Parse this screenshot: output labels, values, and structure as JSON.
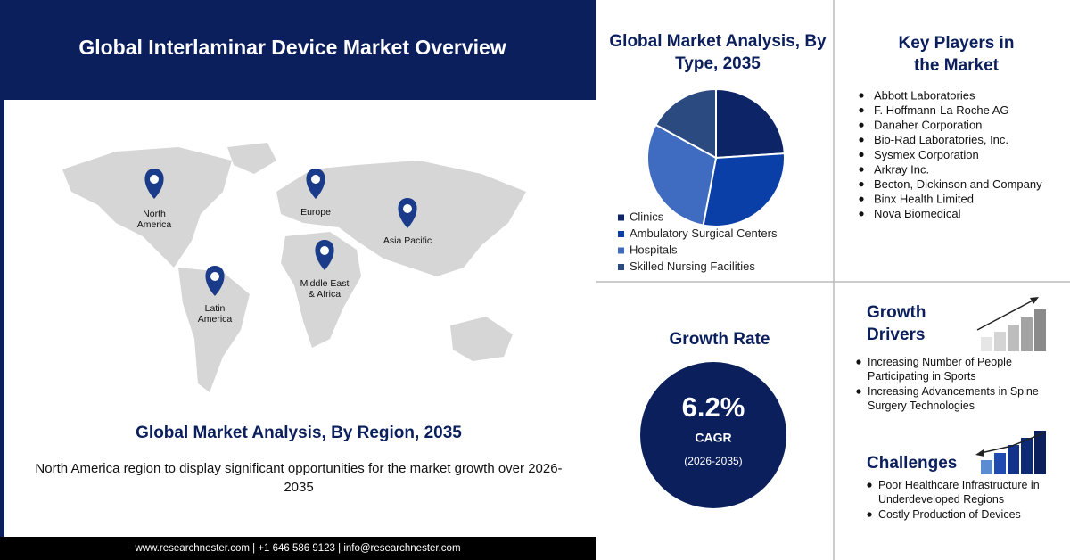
{
  "header": {
    "title": "Global Interlaminar Device Market Overview"
  },
  "map": {
    "pins": [
      "North America",
      "Europe",
      "Asia Pacific",
      "Middle East & Africa",
      "Latin America"
    ],
    "heading": "Global Market Analysis, By Region, 2035",
    "text": "North America region to display significant opportunities for the market growth over 2026-2035"
  },
  "footer": "www.researchnester.com | +1 646 586 9123 | info@researchnester.com",
  "chart_data": {
    "type": "pie",
    "title": "Global Market Analysis, By Type, 2035",
    "categories": [
      "Clinics",
      "Ambulatory Surgical Centers",
      "Hospitals",
      "Skilled Nursing Facilities"
    ],
    "values": [
      24,
      29,
      30,
      17
    ],
    "colors": [
      "#0d2466",
      "#0a3fa8",
      "#3f6cc0",
      "#2a4a80"
    ]
  },
  "key_players": {
    "title": "Key Players in the Market",
    "items": [
      "Abbott Laboratories",
      "F. Hoffmann-La Roche AG",
      "Danaher Corporation",
      "Bio-Rad Laboratories, Inc.",
      "Sysmex Corporation",
      "Arkray Inc.",
      "Becton, Dickinson and Company",
      "Binx Health Limited",
      "Nova Biomedical"
    ]
  },
  "growth_rate": {
    "title": "Growth Rate",
    "value": "6.2%",
    "label": "CAGR",
    "period": "(2026-2035)"
  },
  "growth_drivers": {
    "title": "Growth Drivers",
    "items": [
      "Increasing Number of People Participating in Sports",
      "Increasing Advancements in Spine Surgery Technologies"
    ]
  },
  "challenges": {
    "title": "Challenges",
    "items": [
      "Poor Healthcare Infrastructure in Underdeveloped Regions",
      "Costly Production of Devices"
    ]
  }
}
